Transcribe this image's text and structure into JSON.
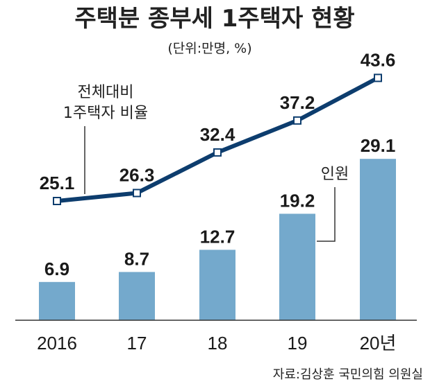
{
  "chart_data": {
    "type": "bar",
    "title": "주택분 종부세 1주택자 현황",
    "unit": "(단위:만명, %)",
    "categories": [
      "2016",
      "17",
      "18",
      "19",
      "20년"
    ],
    "series": [
      {
        "name": "인원",
        "type": "bar",
        "values": [
          6.9,
          8.7,
          12.7,
          19.2,
          29.1
        ],
        "labels": [
          "6.9",
          "8.7",
          "12.7",
          "19.2",
          "29.1"
        ]
      },
      {
        "name_lines": [
          "전체대비",
          "1주택자 비율"
        ],
        "type": "line",
        "values": [
          25.1,
          26.3,
          32.4,
          37.2,
          43.6
        ],
        "labels": [
          "25.1",
          "26.3",
          "32.4",
          "37.2",
          "43.6"
        ]
      }
    ],
    "source": "자료:김상훈 국민의힘 의원실",
    "grid": false,
    "colors": {
      "bar": "#74a9cc",
      "line": "#0d3d6e",
      "text": "#1a1a1a",
      "leader": "#333333"
    }
  }
}
